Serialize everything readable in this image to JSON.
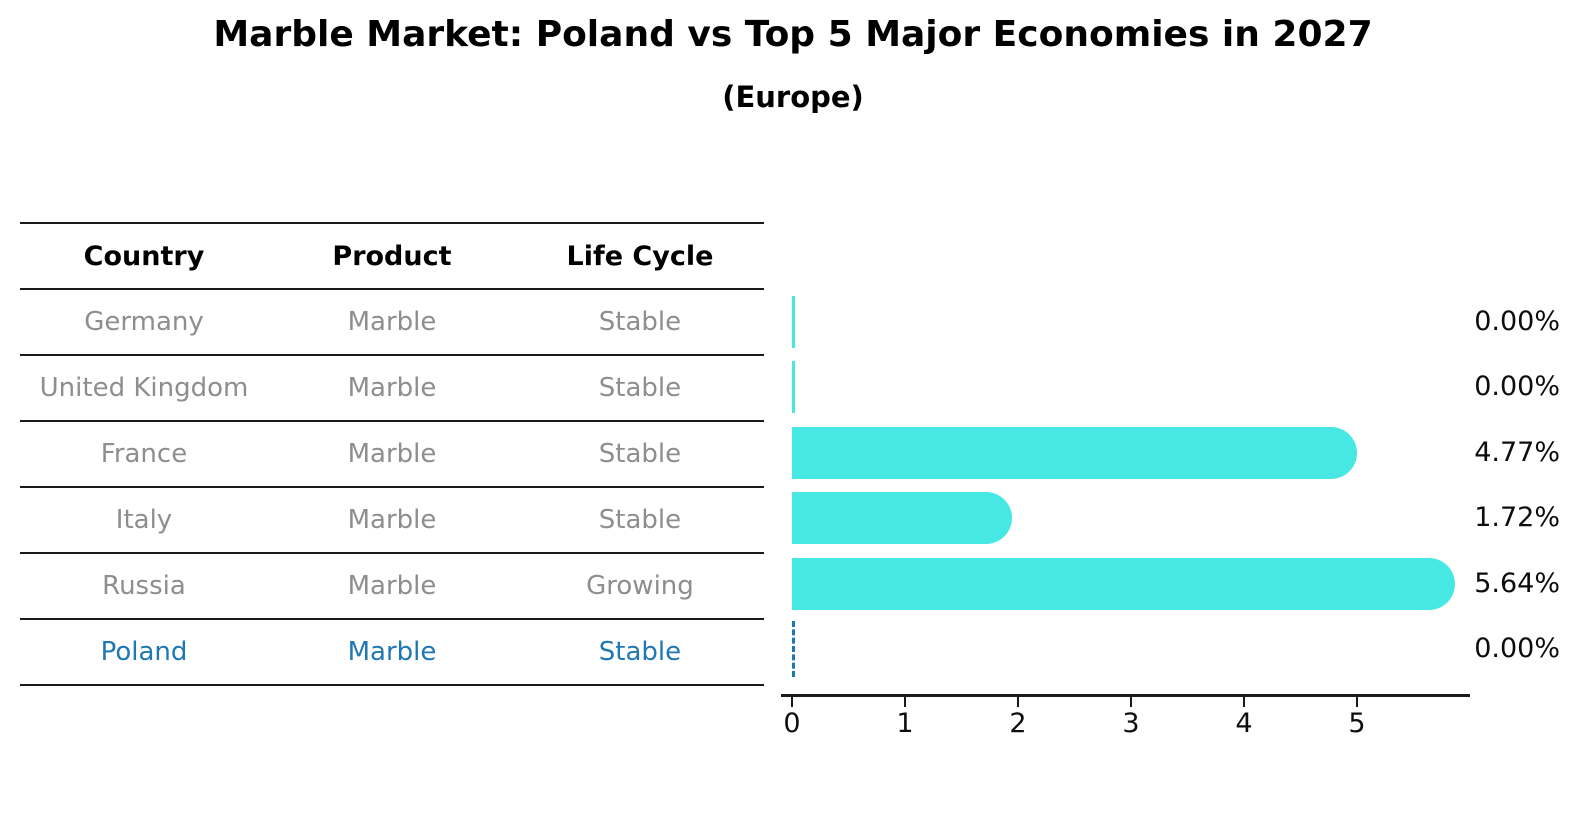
{
  "title": "Marble Market: Poland vs Top 5 Major Economies in 2027",
  "subtitle": "(Europe)",
  "table": {
    "headers": [
      "Country",
      "Product",
      "Life Cycle"
    ],
    "rows": [
      {
        "country": "Germany",
        "product": "Marble",
        "life_cycle": "Stable"
      },
      {
        "country": "United Kingdom",
        "product": "Marble",
        "life_cycle": "Stable"
      },
      {
        "country": "France",
        "product": "Marble",
        "life_cycle": "Stable"
      },
      {
        "country": "Italy",
        "product": "Marble",
        "life_cycle": "Stable"
      },
      {
        "country": "Russia",
        "product": "Marble",
        "life_cycle": "Growing"
      },
      {
        "country": "Poland",
        "product": "Marble",
        "life_cycle": "Stable"
      }
    ]
  },
  "chart_data": {
    "type": "bar",
    "orientation": "horizontal",
    "title": "Marble Market: Poland vs Top 5 Major Economies in 2027",
    "subtitle": "(Europe)",
    "categories": [
      "Germany",
      "United Kingdom",
      "France",
      "Italy",
      "Russia",
      "Poland"
    ],
    "values": [
      0.0,
      0.0,
      4.77,
      1.72,
      5.64,
      0.0
    ],
    "value_labels": [
      "0.00%",
      "0.00%",
      "4.77%",
      "1.72%",
      "5.64%",
      "0.00%"
    ],
    "x_ticks": [
      0,
      1,
      2,
      3,
      4,
      5
    ],
    "xlim": [
      0,
      6
    ],
    "grid": false,
    "legend": false,
    "bar_color": "#47e8e4",
    "highlight_category": "Poland",
    "highlight_color": "#1f77b4",
    "muted_text_color": "#8e8e8e",
    "axis_color": "#1a1a1a"
  }
}
